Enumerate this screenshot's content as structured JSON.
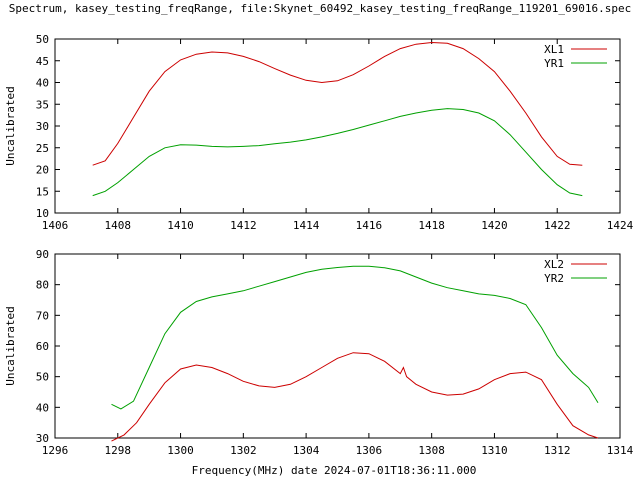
{
  "title": "Spectrum, kasey_testing_freqRange, file:Skynet_60492_kasey_testing_freqRange_119201_69016.spec",
  "xlabel": "Frequency(MHz) date 2024-07-01T18:36:11.000",
  "colors": {
    "red": "#cc0000",
    "green": "#00a000"
  },
  "chart_data": [
    {
      "type": "line",
      "ylabel": "Uncalibrated",
      "xlim": [
        1406,
        1424
      ],
      "ylim": [
        10,
        50
      ],
      "xticks": [
        1406,
        1408,
        1410,
        1412,
        1414,
        1416,
        1418,
        1420,
        1422,
        1424
      ],
      "yticks": [
        10,
        15,
        20,
        25,
        30,
        35,
        40,
        45,
        50
      ],
      "legend_position": "top-right",
      "series": [
        {
          "name": "XL1",
          "color": "#cc0000",
          "x": [
            1407.2,
            1407.6,
            1408.0,
            1408.5,
            1409.0,
            1409.5,
            1410.0,
            1410.5,
            1411.0,
            1411.5,
            1412.0,
            1412.5,
            1413.0,
            1413.5,
            1414.0,
            1414.5,
            1415.0,
            1415.5,
            1416.0,
            1416.5,
            1417.0,
            1417.5,
            1418.0,
            1418.5,
            1419.0,
            1419.5,
            1420.0,
            1420.5,
            1421.0,
            1421.5,
            1422.0,
            1422.4,
            1422.8
          ],
          "y": [
            21.0,
            22.0,
            26.0,
            32.0,
            38.0,
            42.5,
            45.2,
            46.5,
            47.0,
            46.8,
            46.0,
            44.8,
            43.2,
            41.7,
            40.5,
            40.0,
            40.4,
            41.8,
            43.8,
            46.0,
            47.8,
            48.8,
            49.2,
            49.0,
            47.8,
            45.5,
            42.5,
            38.0,
            33.0,
            27.5,
            23.0,
            21.2,
            21.0
          ]
        },
        {
          "name": "YR1",
          "color": "#00a000",
          "x": [
            1407.2,
            1407.6,
            1408.0,
            1408.5,
            1409.0,
            1409.5,
            1410.0,
            1410.5,
            1411.0,
            1411.5,
            1412.0,
            1412.5,
            1413.0,
            1413.5,
            1414.0,
            1414.5,
            1415.0,
            1415.5,
            1416.0,
            1416.5,
            1417.0,
            1417.5,
            1418.0,
            1418.5,
            1419.0,
            1419.5,
            1420.0,
            1420.5,
            1421.0,
            1421.5,
            1422.0,
            1422.4,
            1422.8
          ],
          "y": [
            14.0,
            15.0,
            17.0,
            20.0,
            23.0,
            25.0,
            25.7,
            25.6,
            25.3,
            25.2,
            25.3,
            25.5,
            25.9,
            26.3,
            26.8,
            27.5,
            28.3,
            29.2,
            30.2,
            31.2,
            32.2,
            33.0,
            33.6,
            34.0,
            33.8,
            33.0,
            31.2,
            28.0,
            24.0,
            20.0,
            16.5,
            14.6,
            14.0
          ]
        }
      ]
    },
    {
      "type": "line",
      "ylabel": "Uncalibrated",
      "xlim": [
        1296,
        1314
      ],
      "ylim": [
        30,
        90
      ],
      "xticks": [
        1296,
        1298,
        1300,
        1302,
        1304,
        1306,
        1308,
        1310,
        1312,
        1314
      ],
      "yticks": [
        30,
        40,
        50,
        60,
        70,
        80,
        90
      ],
      "legend_position": "top-right",
      "series": [
        {
          "name": "XL2",
          "color": "#cc0000",
          "x": [
            1297.8,
            1298.2,
            1298.6,
            1299.0,
            1299.5,
            1300.0,
            1300.5,
            1301.0,
            1301.5,
            1302.0,
            1302.5,
            1303.0,
            1303.5,
            1304.0,
            1304.5,
            1305.0,
            1305.5,
            1306.0,
            1306.5,
            1307.0,
            1307.1,
            1307.2,
            1307.5,
            1308.0,
            1308.5,
            1309.0,
            1309.5,
            1310.0,
            1310.5,
            1311.0,
            1311.5,
            1312.0,
            1312.5,
            1313.0,
            1313.3
          ],
          "y": [
            29.0,
            31.0,
            35.0,
            41.0,
            48.0,
            52.5,
            53.8,
            53.0,
            51.0,
            48.5,
            47.0,
            46.5,
            47.5,
            50.0,
            53.0,
            56.0,
            57.8,
            57.5,
            55.0,
            51.0,
            53.0,
            50.0,
            47.5,
            45.0,
            44.0,
            44.3,
            46.0,
            49.0,
            51.0,
            51.5,
            49.0,
            41.0,
            34.0,
            31.0,
            30.0
          ]
        },
        {
          "name": "YR2",
          "color": "#00a000",
          "x": [
            1297.8,
            1298.1,
            1298.5,
            1299.0,
            1299.5,
            1300.0,
            1300.5,
            1301.0,
            1301.5,
            1302.0,
            1302.5,
            1303.0,
            1303.5,
            1304.0,
            1304.5,
            1305.0,
            1305.5,
            1306.0,
            1306.5,
            1307.0,
            1307.5,
            1308.0,
            1308.5,
            1309.0,
            1309.5,
            1310.0,
            1310.5,
            1311.0,
            1311.5,
            1312.0,
            1312.5,
            1313.0,
            1313.3
          ],
          "y": [
            41.0,
            39.5,
            42.0,
            53.0,
            64.0,
            71.0,
            74.5,
            76.0,
            77.0,
            78.0,
            79.5,
            81.0,
            82.5,
            84.0,
            85.0,
            85.6,
            86.0,
            86.0,
            85.5,
            84.5,
            82.5,
            80.5,
            79.0,
            78.0,
            77.0,
            76.5,
            75.5,
            73.5,
            66.0,
            57.0,
            51.0,
            46.5,
            41.5
          ]
        }
      ]
    }
  ]
}
